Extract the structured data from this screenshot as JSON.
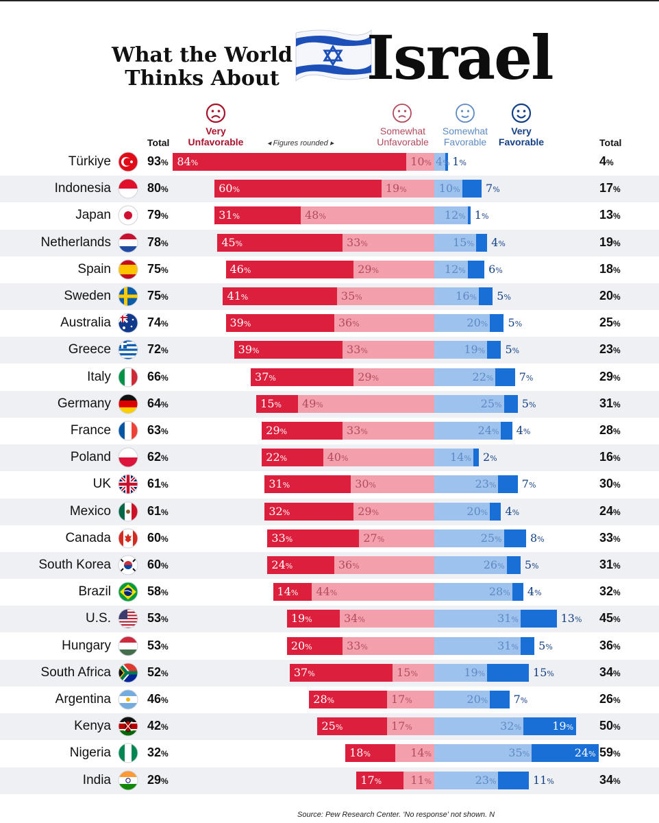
{
  "title": {
    "line1": "What the World",
    "line2": "Thinks About",
    "big": "Israel"
  },
  "headers": {
    "total": "Total",
    "very_unfav_1": "Very",
    "very_unfav_2": "Unfavorable",
    "some_unfav_1": "Somewhat",
    "some_unfav_2": "Unfavorable",
    "some_fav_1": "Somewhat",
    "some_fav_2": "Favorable",
    "very_fav_1": "Very",
    "very_fav_2": "Favorable",
    "note": "◂ Figures rounded ▸"
  },
  "source": "Source: Pew Research Center. 'No response' not shown. N",
  "colors": {
    "very_unfav": "#dc1f3c",
    "some_unfav": "#f3a0ac",
    "some_fav": "#9ec2ee",
    "very_fav": "#1a6fd6",
    "very_unfav_text": "#a8122c",
    "some_unfav_text": "#b34a5c",
    "some_fav_text": "#5d8ac4",
    "very_fav_text": "#123f86"
  },
  "chart_data": {
    "type": "bar",
    "layout": "diverging-stacked",
    "x_unit": "%",
    "categories": [
      "Türkiye",
      "Indonesia",
      "Japan",
      "Netherlands",
      "Spain",
      "Sweden",
      "Australia",
      "Greece",
      "Italy",
      "Germany",
      "France",
      "Poland",
      "UK",
      "Mexico",
      "Canada",
      "South Korea",
      "Brazil",
      "U.S.",
      "Hungary",
      "South Africa",
      "Argentina",
      "Kenya",
      "Nigeria",
      "India"
    ],
    "series": [
      {
        "name": "Very Unfavorable",
        "values": [
          84,
          60,
          31,
          45,
          46,
          41,
          39,
          39,
          37,
          15,
          29,
          22,
          31,
          32,
          33,
          24,
          14,
          19,
          20,
          37,
          28,
          25,
          18,
          17
        ]
      },
      {
        "name": "Somewhat Unfavorable",
        "values": [
          10,
          19,
          48,
          33,
          29,
          35,
          36,
          33,
          29,
          49,
          33,
          40,
          30,
          29,
          27,
          36,
          44,
          34,
          33,
          15,
          17,
          17,
          14,
          11
        ]
      },
      {
        "name": "Somewhat Favorable",
        "values": [
          4,
          10,
          12,
          15,
          12,
          16,
          20,
          19,
          22,
          25,
          24,
          14,
          23,
          20,
          25,
          26,
          28,
          31,
          31,
          19,
          20,
          32,
          35,
          23
        ]
      },
      {
        "name": "Very Favorable",
        "values": [
          1,
          7,
          1,
          4,
          6,
          5,
          5,
          5,
          7,
          5,
          4,
          2,
          7,
          4,
          8,
          5,
          4,
          13,
          5,
          15,
          7,
          19,
          24,
          11
        ]
      }
    ],
    "total_unfavorable": [
      93,
      80,
      79,
      78,
      75,
      75,
      74,
      72,
      66,
      64,
      63,
      62,
      61,
      61,
      60,
      60,
      58,
      53,
      53,
      52,
      46,
      42,
      32,
      29
    ],
    "total_favorable": [
      4,
      17,
      13,
      19,
      18,
      20,
      25,
      23,
      29,
      31,
      28,
      16,
      30,
      24,
      33,
      31,
      32,
      45,
      36,
      34,
      26,
      50,
      59,
      34
    ]
  }
}
